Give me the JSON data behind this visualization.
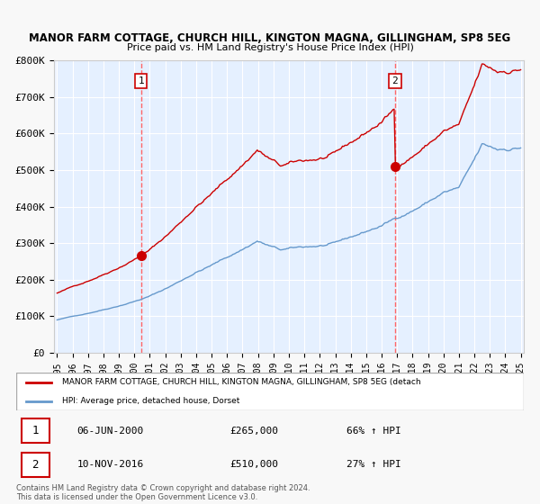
{
  "title1": "MANOR FARM COTTAGE, CHURCH HILL, KINGTON MAGNA, GILLINGHAM, SP8 5EG",
  "title2": "Price paid vs. HM Land Registry's House Price Index (HPI)",
  "xlabel": "",
  "ylabel": "",
  "ylim": [
    0,
    800000
  ],
  "yticks": [
    0,
    100000,
    200000,
    300000,
    400000,
    500000,
    600000,
    700000,
    800000
  ],
  "ytick_labels": [
    "£0",
    "£100K",
    "£200K",
    "£300K",
    "£400K",
    "£500K",
    "£600K",
    "£700K",
    "£800K"
  ],
  "purchase1_date": 2000.43,
  "purchase1_price": 265000,
  "purchase2_date": 2016.86,
  "purchase2_price": 510000,
  "legend1": "MANOR FARM COTTAGE, CHURCH HILL, KINGTON MAGNA, GILLINGHAM, SP8 5EG (detach",
  "legend2": "HPI: Average price, detached house, Dorset",
  "annotation1_label": "1",
  "annotation1_date": "06-JUN-2000",
  "annotation1_price": "£265,000",
  "annotation1_hpi": "66% ↑ HPI",
  "annotation2_label": "2",
  "annotation2_date": "10-NOV-2016",
  "annotation2_price": "£510,000",
  "annotation2_hpi": "27% ↑ HPI",
  "footer": "Contains HM Land Registry data © Crown copyright and database right 2024.\nThis data is licensed under the Open Government Licence v3.0.",
  "red_line_color": "#cc0000",
  "blue_line_color": "#6699cc",
  "bg_color": "#ddeeff",
  "plot_bg": "#eef4ff",
  "grid_color": "#ffffff",
  "dashed_line_color": "#ff6666"
}
